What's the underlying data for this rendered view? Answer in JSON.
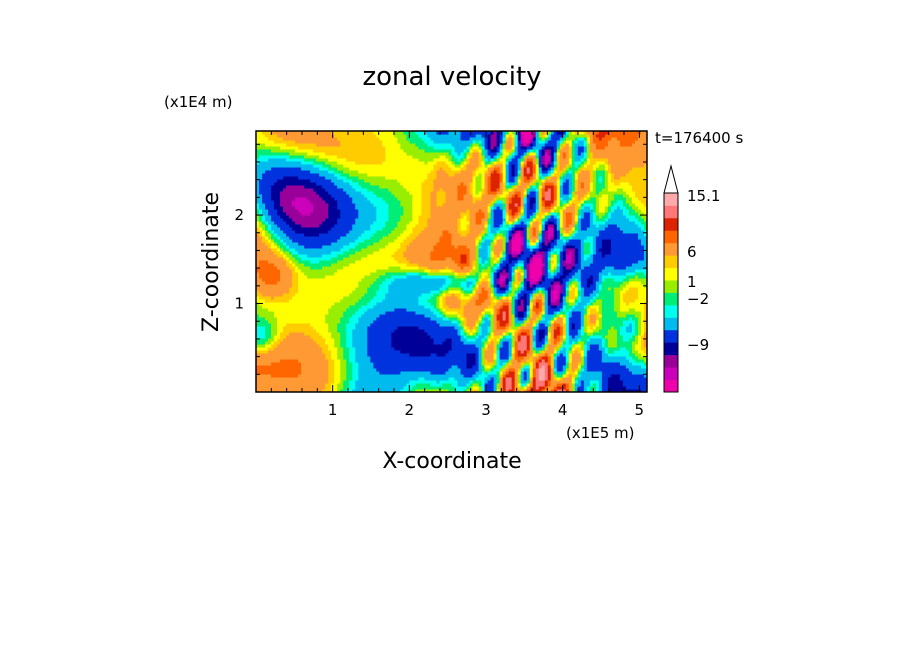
{
  "chart_data": {
    "type": "heatmap",
    "title": "zonal velocity",
    "xlabel": "X-coordinate",
    "ylabel": "Z-coordinate",
    "x_unit": "(x1E5 m)",
    "y_unit": "(x1E4 m)",
    "time_label": "t=176400 s",
    "xlim": [
      0,
      5.1
    ],
    "ylim": [
      0,
      2.95
    ],
    "x_ticks": [
      "1",
      "2",
      "3",
      "4",
      "5"
    ],
    "y_ticks": [
      "1",
      "2"
    ],
    "colorbar": {
      "labels": [
        "15.1",
        "6",
        "1",
        "−2",
        "−9"
      ],
      "colors": [
        "#ee00aa",
        "#cc00bb",
        "#990099",
        "#000099",
        "#0033dd",
        "#00bbee",
        "#00ffee",
        "#00ee77",
        "#99ee00",
        "#ffff00",
        "#ffcc00",
        "#ff9933",
        "#ff6600",
        "#dd2200",
        "#ff7777",
        "#ffaaaa"
      ]
    }
  }
}
